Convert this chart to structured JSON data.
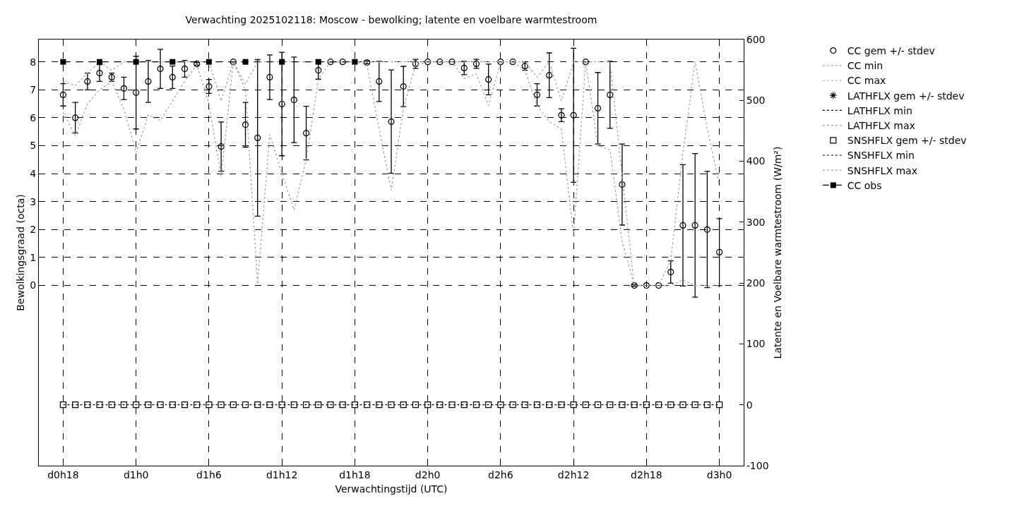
{
  "chart_data": {
    "type": "scatter",
    "title": "Verwachting 2025102118: Moscow - bewolking; latente en voelbare warmtestroom",
    "xlabel": "Verwachtingstijd (UTC)",
    "ylabel": "Bewolkingsgraad (octa)",
    "y2label": "Latente en Voelbare warmtestroom (W/m²)",
    "categories": [
      "d0h18",
      null,
      null,
      null,
      null,
      null,
      "d1h0",
      null,
      null,
      null,
      null,
      null,
      "d1h6",
      null,
      null,
      null,
      null,
      null,
      "d1h12",
      null,
      null,
      null,
      null,
      null,
      "d1h18",
      null,
      null,
      null,
      null,
      null,
      "d2h0",
      null,
      null,
      null,
      null,
      null,
      "d2h6",
      null,
      null,
      null,
      null,
      null,
      "d2h12",
      null,
      null,
      null,
      null,
      null,
      "d2h18",
      null,
      null,
      null,
      null,
      null,
      "d3h0"
    ],
    "ylim": [
      -6.45,
      8.8
    ],
    "yticks": [
      0,
      1,
      2,
      3,
      4,
      5,
      6,
      7,
      8
    ],
    "y2lim": [
      -100,
      600
    ],
    "y2ticks": [
      -100,
      0,
      100,
      200,
      300,
      400,
      500,
      600
    ],
    "grid": true,
    "legend": "top right",
    "series": [
      {
        "name": "CC gem +/- stdev",
        "marker": "circle",
        "color": "#000000",
        "values": [
          6.82,
          6.0,
          7.3,
          7.6,
          7.45,
          7.05,
          6.9,
          7.3,
          7.75,
          7.45,
          7.75,
          7.93,
          7.12,
          4.97,
          8.0,
          5.75,
          5.28,
          7.45,
          6.49,
          6.64,
          5.45,
          7.7,
          8.0,
          8.0,
          null,
          7.98,
          7.3,
          5.86,
          7.12,
          7.93,
          8.0,
          8.0,
          8.0,
          7.78,
          7.93,
          7.37,
          8.0,
          8.0,
          7.85,
          6.82,
          7.52,
          6.09,
          6.09,
          8.0,
          6.34,
          6.82,
          3.61,
          0,
          0,
          0,
          0.48,
          2.15,
          2.15,
          2.0,
          1.19
        ],
        "errors": [
          0.4,
          0.55,
          0.3,
          0.3,
          0.15,
          0.4,
          1.3,
          0.75,
          0.7,
          0.4,
          0.3,
          0.05,
          0.25,
          0.88,
          null,
          0.8,
          2.8,
          0.8,
          1.85,
          1.53,
          0.96,
          0.32,
          null,
          null,
          null,
          0.05,
          0.72,
          1.85,
          0.72,
          0.16,
          null,
          null,
          null,
          0.24,
          0.16,
          0.55,
          null,
          null,
          0.15,
          0.4,
          0.8,
          0.23,
          2.4,
          null,
          1.28,
          1.2,
          1.45,
          0.03,
          null,
          null,
          0.4,
          2.17,
          2.57,
          2.08,
          1.2
        ]
      },
      {
        "name": "CC min",
        "type": "line",
        "line_style": "dotted",
        "color": "#a0a0a0",
        "values": [
          6.2,
          5.35,
          6.5,
          7.0,
          7.3,
          6.3,
          4.75,
          6.1,
          5.9,
          6.6,
          7.3,
          7.9,
          6.5,
          3.9,
          8.0,
          7.0,
          0.05,
          5.4,
          4.0,
          2.7,
          4.5,
          7.37,
          8,
          8,
          8,
          7.9,
          5.6,
          3.4,
          6.35,
          7.88,
          8,
          8,
          8,
          7.4,
          7.57,
          6.44,
          8,
          8,
          7.7,
          6.44,
          5.86,
          5.6,
          1.8,
          8,
          5.0,
          4.85,
          1.57,
          0,
          0,
          0,
          0,
          0.2,
          0,
          0,
          0
        ]
      },
      {
        "name": "CC max",
        "type": "line",
        "line_style": "dotted",
        "color": "#a0a0a0",
        "values": [
          7.3,
          7.15,
          7.6,
          8,
          7.7,
          8,
          8,
          8,
          8,
          8,
          8,
          8,
          8,
          6.6,
          8,
          7.2,
          8,
          8,
          8,
          8,
          8,
          8,
          8,
          8,
          8,
          8,
          8,
          8,
          8,
          8,
          8,
          8,
          8,
          8,
          8,
          8,
          8,
          8,
          8,
          7.45,
          8,
          6.6,
          8,
          8,
          8,
          8,
          3.9,
          0,
          0,
          0,
          0.9,
          4.75,
          8,
          5.6,
          3.6
        ]
      },
      {
        "name": "LATHFLX gem +/- stdev",
        "marker": "star",
        "color": "#000000",
        "axis": "y2",
        "values": [
          null,
          null,
          null,
          null,
          null,
          null,
          null,
          null,
          null,
          null,
          null,
          null,
          null,
          null,
          null,
          null,
          null,
          null,
          null,
          null,
          null,
          null,
          null,
          null,
          null,
          null,
          null,
          null,
          null,
          null,
          null,
          null,
          null,
          null,
          null,
          null,
          null,
          null,
          null,
          null,
          null,
          null,
          null,
          null,
          null,
          null,
          null,
          null,
          null,
          null,
          null,
          null,
          null,
          null,
          null
        ]
      },
      {
        "name": "LATHFLX min",
        "type": "line",
        "line_style": "dotted",
        "color": "#000000",
        "axis": "y2",
        "values": [
          null,
          null,
          null,
          null,
          null,
          null,
          null,
          null,
          null,
          null,
          null,
          null,
          null,
          null,
          null,
          null,
          null,
          null,
          null,
          null,
          null,
          null,
          null,
          null,
          null,
          null,
          null,
          null,
          null,
          null,
          null,
          null,
          null,
          null,
          null,
          null,
          null,
          null,
          null,
          null,
          null,
          null,
          null,
          null,
          null,
          null,
          null,
          null,
          null,
          null,
          null,
          null,
          null,
          null,
          null
        ]
      },
      {
        "name": "LATHFLX max",
        "type": "line",
        "line_style": "dotted",
        "color": "#a0a0a0",
        "axis": "y2",
        "values": [
          null,
          null,
          null,
          null,
          null,
          null,
          null,
          null,
          null,
          null,
          null,
          null,
          null,
          null,
          null,
          null,
          null,
          null,
          null,
          null,
          null,
          null,
          null,
          null,
          null,
          null,
          null,
          null,
          null,
          null,
          null,
          null,
          null,
          null,
          null,
          null,
          null,
          null,
          null,
          null,
          null,
          null,
          null,
          null,
          null,
          null,
          null,
          null,
          null,
          null,
          null,
          null,
          null,
          null,
          null
        ]
      },
      {
        "name": "SNSHFLX gem +/- stdev",
        "marker": "square",
        "color": "#000000",
        "axis": "y2",
        "values": [
          0,
          0,
          0,
          0,
          0,
          0,
          0,
          0,
          0,
          0,
          0,
          0,
          0,
          0,
          0,
          0,
          0,
          0,
          0,
          0,
          0,
          0,
          0,
          0,
          0,
          0,
          0,
          0,
          0,
          0,
          0,
          0,
          0,
          0,
          0,
          0,
          0,
          0,
          0,
          0,
          0,
          0,
          0,
          0,
          0,
          0,
          0,
          0,
          0,
          0,
          0,
          0,
          0,
          0,
          0
        ]
      },
      {
        "name": "SNSHFLX min",
        "type": "line",
        "line_style": "dotted",
        "color": "#000000",
        "axis": "y2",
        "values": [
          0,
          0,
          0,
          0,
          0,
          0,
          0,
          0,
          0,
          0,
          0,
          0,
          0,
          0,
          0,
          0,
          0,
          0,
          0,
          0,
          0,
          0,
          0,
          0,
          0,
          0,
          0,
          0,
          0,
          0,
          0,
          0,
          0,
          0,
          0,
          0,
          0,
          0,
          0,
          0,
          0,
          0,
          0,
          0,
          0,
          0,
          0,
          0,
          0,
          0,
          0,
          0,
          0,
          0,
          0
        ]
      },
      {
        "name": "SNSHFLX max",
        "type": "line",
        "line_style": "dotted",
        "color": "#a0a0a0",
        "axis": "y2",
        "values": [
          null,
          null,
          null,
          null,
          null,
          null,
          null,
          null,
          null,
          null,
          null,
          null,
          null,
          null,
          null,
          null,
          null,
          null,
          null,
          null,
          null,
          null,
          null,
          null,
          null,
          null,
          null,
          null,
          null,
          null,
          null,
          null,
          null,
          null,
          null,
          null,
          null,
          null,
          null,
          null,
          null,
          null,
          null,
          null,
          null,
          null,
          null,
          null,
          null,
          null,
          null,
          null,
          null,
          null,
          null
        ]
      },
      {
        "name": "CC obs",
        "type": "line",
        "line_style": "dashed",
        "marker": "square",
        "color": "#000000",
        "values": [
          8,
          null,
          null,
          8,
          null,
          null,
          8,
          null,
          null,
          8,
          null,
          null,
          8,
          null,
          null,
          8,
          null,
          null,
          8,
          null,
          null,
          8,
          null,
          null,
          8,
          null,
          null,
          null,
          null,
          null,
          null,
          null,
          null,
          null,
          null,
          null,
          null,
          null,
          null,
          null,
          null,
          null,
          null,
          null,
          null,
          null,
          null,
          null,
          null,
          null,
          null,
          null,
          null,
          null,
          null
        ]
      }
    ]
  }
}
